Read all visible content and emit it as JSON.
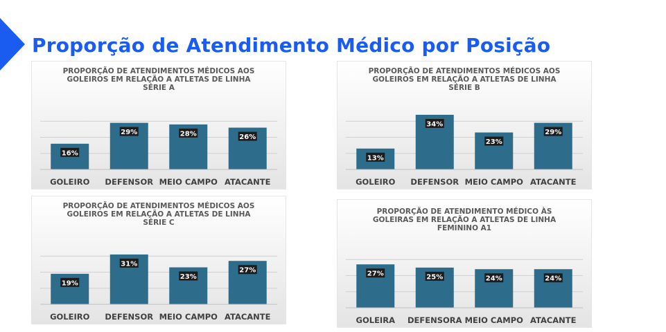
{
  "page": {
    "title": "Proporção de Atendimento Médico por Posição"
  },
  "colors": {
    "bar": "#2e6c8c",
    "title_accent": "#1a5cf0",
    "grid": "#d0d0d0",
    "axis_text": "#404040"
  },
  "chart_data": [
    {
      "type": "bar",
      "title_lines": [
        "PROPORÇÃO DE ATENDIMENTOS MÉDICOS AOS",
        "GOLEIROS EM RELAÇÃO A ATLETAS DE LINHA",
        "SÉRIE A"
      ],
      "categories": [
        "GOLEIRO",
        "DEFENSOR",
        "MEIO CAMPO",
        "ATACANTE"
      ],
      "values": [
        16,
        29,
        28,
        26
      ],
      "data_labels": [
        "16%",
        "29%",
        "28%",
        "26%"
      ],
      "ylim": [
        0,
        40
      ],
      "grid": true,
      "legend": "none"
    },
    {
      "type": "bar",
      "title_lines": [
        "PROPORÇÃO DE ATENDIMENTOS MÉDICOS AOS",
        "GOLEIROS EM RELAÇÃO A ATLETAS DE LINHA",
        "SÉRIE B"
      ],
      "categories": [
        "GOLEIRO",
        "DEFENSOR",
        "MEIO CAMPO",
        "ATACANTE"
      ],
      "values": [
        13,
        34,
        23,
        29
      ],
      "data_labels": [
        "13%",
        "34%",
        "23%",
        "29%"
      ],
      "ylim": [
        0,
        40
      ],
      "grid": true,
      "legend": "none"
    },
    {
      "type": "bar",
      "title_lines": [
        "PROPORÇÃO DE ATENDIMENTOS MÉDICOS AOS",
        "GOLEIROS EM RELAÇÃO A ATLETAS DE LINHA",
        "SÉRIE C"
      ],
      "categories": [
        "GOLEIRO",
        "DEFENSOR",
        "MEIO CAMPO",
        "ATACANTE"
      ],
      "values": [
        19,
        31,
        23,
        27
      ],
      "data_labels": [
        "19%",
        "31%",
        "23%",
        "27%"
      ],
      "ylim": [
        0,
        40
      ],
      "grid": true,
      "legend": "none"
    },
    {
      "type": "bar",
      "title_lines": [
        "PROPORÇÃO DE ATENDIMENTO MÉDICO ÀS",
        "GOLEIRAS EM RELAÇÃO A ATLETAS DE LINHA",
        "FEMININO A1"
      ],
      "categories": [
        "GOLEIRA",
        "DEFENSORA",
        "MEIO CAMPO",
        "ATACANTE"
      ],
      "values": [
        27,
        25,
        24,
        24
      ],
      "data_labels": [
        "27%",
        "25%",
        "24%",
        "24%"
      ],
      "ylim": [
        0,
        40
      ],
      "grid": true,
      "legend": "none"
    }
  ]
}
